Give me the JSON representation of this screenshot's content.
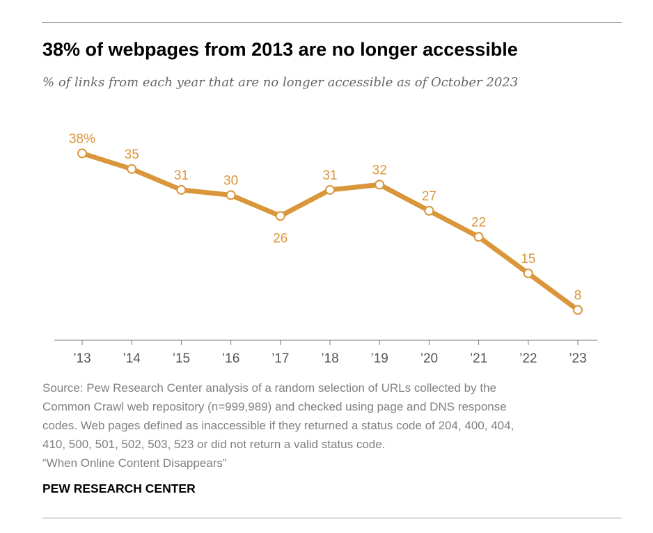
{
  "header": {
    "title": "38% of webpages from 2013 are no longer accessible",
    "subtitle": "% of links from each year that are no longer accessible as of October 2023"
  },
  "chart_data": {
    "type": "line",
    "title": "38% of webpages from 2013 are no longer accessible",
    "subtitle": "% of links from each year that are no longer accessible as of October 2023",
    "categories": [
      "’13",
      "’14",
      "’15",
      "’16",
      "’17",
      "’18",
      "’19",
      "’20",
      "’21",
      "’22",
      "’23"
    ],
    "values": [
      38,
      35,
      31,
      30,
      26,
      31,
      32,
      27,
      22,
      15,
      8
    ],
    "data_labels": [
      "38%",
      "35",
      "31",
      "30",
      "26",
      "31",
      "32",
      "27",
      "22",
      "15",
      "8"
    ],
    "label_positions": [
      "above",
      "above",
      "above",
      "above",
      "below",
      "above",
      "above",
      "above",
      "above",
      "above",
      "above"
    ],
    "ylim": [
      0,
      40
    ],
    "grid": false,
    "color": "#d9963a"
  },
  "footer": {
    "source_lines": [
      "Source: Pew Research Center analysis of a random selection of URLs collected by the",
      "Common Crawl web repository (n=999,989) and checked using page and DNS response",
      "codes. Web pages defined as inaccessible if they returned a status code of 204, 400, 404,",
      "410, 500, 501, 502, 503, 523 or did not return a valid status code."
    ],
    "report_title": "“When Online Content Disappears”",
    "brand": "PEW RESEARCH CENTER"
  }
}
